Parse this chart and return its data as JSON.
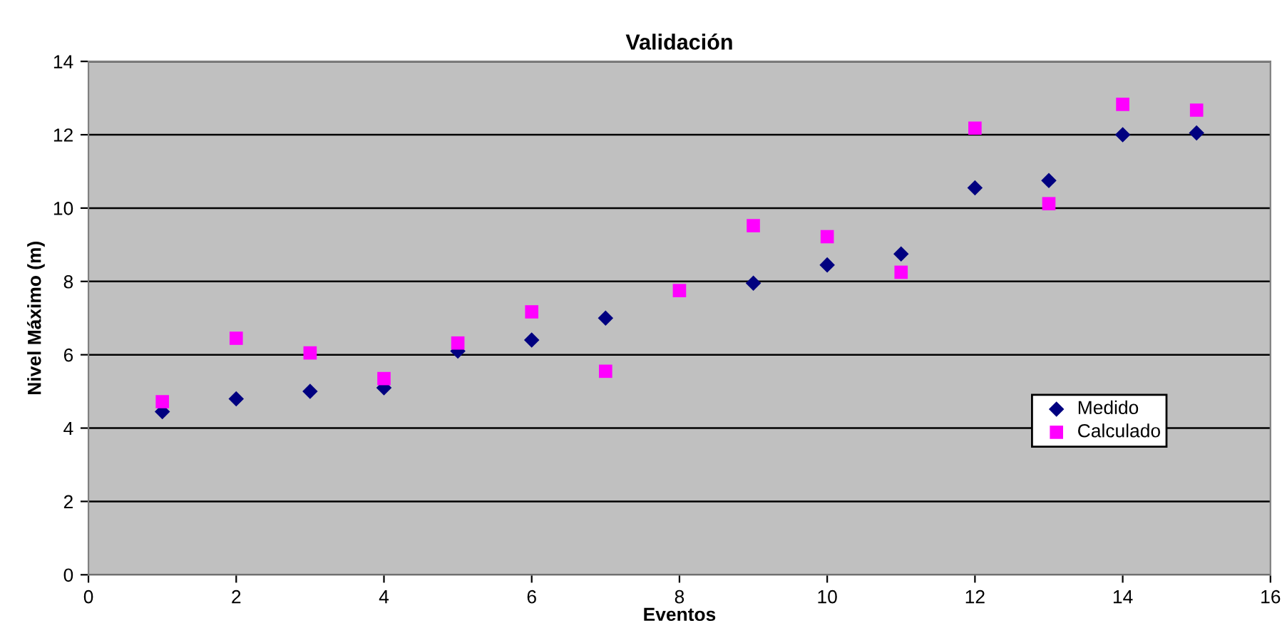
{
  "chart_data": {
    "type": "scatter",
    "title": "Validación",
    "xlabel": "Eventos",
    "ylabel": "Nivel Máximo (m)",
    "x": [
      1,
      2,
      3,
      4,
      5,
      6,
      7,
      8,
      9,
      10,
      11,
      12,
      13,
      14,
      15
    ],
    "series": [
      {
        "name": "Medido",
        "color": "#000080",
        "marker": "diamond",
        "values": [
          4.45,
          4.8,
          5.0,
          5.1,
          6.1,
          6.4,
          7.0,
          null,
          7.95,
          8.45,
          8.75,
          10.55,
          10.75,
          12.0,
          12.05
        ]
      },
      {
        "name": "Calculado",
        "color": "#ff00ff",
        "marker": "square",
        "values": [
          4.72,
          6.45,
          6.05,
          5.35,
          6.32,
          7.17,
          5.55,
          7.75,
          9.52,
          9.22,
          8.25,
          12.18,
          10.12,
          12.83,
          12.67
        ]
      }
    ],
    "xlim": [
      0,
      16
    ],
    "xticks": [
      0,
      2,
      4,
      6,
      8,
      10,
      12,
      14,
      16
    ],
    "ylim": [
      0,
      14
    ],
    "yticks": [
      0,
      2,
      4,
      6,
      8,
      10,
      12,
      14
    ],
    "grid": "y",
    "legend": "right"
  }
}
